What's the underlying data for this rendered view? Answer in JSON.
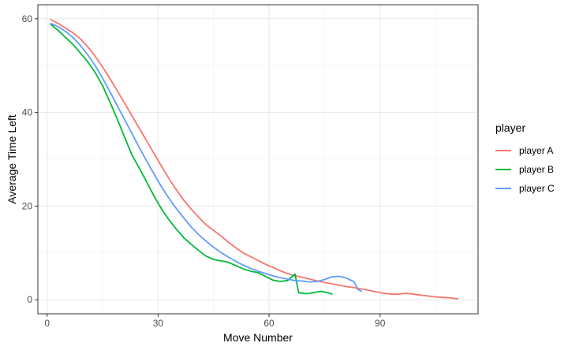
{
  "chart_data": {
    "type": "line",
    "xlabel": "Move Number",
    "ylabel": "Average Time Left",
    "xlim": [
      -2.5,
      116.5
    ],
    "ylim": [
      -3,
      63
    ],
    "x_ticks": [
      0,
      30,
      60,
      90
    ],
    "y_ticks": [
      0,
      20,
      40,
      60
    ],
    "grid": true,
    "legend_position": "right",
    "legend_title": "player",
    "series": [
      {
        "name": "player A",
        "color": "#F8766D",
        "points": [
          [
            1,
            59.8
          ],
          [
            3,
            59.0
          ],
          [
            5,
            58.0
          ],
          [
            7,
            57.0
          ],
          [
            9,
            55.7
          ],
          [
            11,
            54.0
          ],
          [
            13,
            52.0
          ],
          [
            15,
            49.7
          ],
          [
            17,
            47.2
          ],
          [
            19,
            44.6
          ],
          [
            21,
            41.9
          ],
          [
            23,
            39.2
          ],
          [
            25,
            36.5
          ],
          [
            27,
            33.8
          ],
          [
            29,
            31.1
          ],
          [
            31,
            28.4
          ],
          [
            33,
            25.8
          ],
          [
            35,
            23.4
          ],
          [
            37,
            21.2
          ],
          [
            39,
            19.3
          ],
          [
            41,
            17.6
          ],
          [
            43,
            16.0
          ],
          [
            45,
            14.8
          ],
          [
            47,
            13.6
          ],
          [
            49,
            12.3
          ],
          [
            51,
            11.1
          ],
          [
            53,
            10.0
          ],
          [
            55,
            9.2
          ],
          [
            57,
            8.4
          ],
          [
            59,
            7.6
          ],
          [
            61,
            6.9
          ],
          [
            63,
            6.2
          ],
          [
            65,
            5.6
          ],
          [
            67,
            5.1
          ],
          [
            69,
            4.8
          ],
          [
            71,
            4.4
          ],
          [
            73,
            4.0
          ],
          [
            75,
            3.7
          ],
          [
            77,
            3.4
          ],
          [
            79,
            3.1
          ],
          [
            81,
            2.8
          ],
          [
            83,
            2.6
          ],
          [
            85,
            2.3
          ],
          [
            87,
            2.0
          ],
          [
            89,
            1.7
          ],
          [
            91,
            1.4
          ],
          [
            93,
            1.2
          ],
          [
            95,
            1.2
          ],
          [
            97,
            1.4
          ],
          [
            99,
            1.2
          ],
          [
            101,
            1.0
          ],
          [
            103,
            0.8
          ],
          [
            105,
            0.6
          ],
          [
            107,
            0.5
          ],
          [
            109,
            0.4
          ],
          [
            111,
            0.2
          ]
        ]
      },
      {
        "name": "player B",
        "color": "#00BA38",
        "points": [
          [
            1,
            58.8
          ],
          [
            3,
            57.5
          ],
          [
            5,
            56.0
          ],
          [
            7,
            54.5
          ],
          [
            9,
            52.7
          ],
          [
            11,
            50.8
          ],
          [
            13,
            48.5
          ],
          [
            15,
            45.7
          ],
          [
            17,
            42.2
          ],
          [
            19,
            38.5
          ],
          [
            21,
            34.6
          ],
          [
            23,
            30.8
          ],
          [
            25,
            28.0
          ],
          [
            27,
            25.0
          ],
          [
            29,
            22.0
          ],
          [
            31,
            19.3
          ],
          [
            33,
            17.0
          ],
          [
            35,
            15.0
          ],
          [
            37,
            13.2
          ],
          [
            39,
            11.8
          ],
          [
            41,
            10.5
          ],
          [
            43,
            9.3
          ],
          [
            45,
            8.6
          ],
          [
            47,
            8.3
          ],
          [
            49,
            8.0
          ],
          [
            51,
            7.3
          ],
          [
            53,
            6.6
          ],
          [
            55,
            6.1
          ],
          [
            57,
            5.8
          ],
          [
            59,
            5.0
          ],
          [
            61,
            4.2
          ],
          [
            63,
            3.9
          ],
          [
            65,
            4.1
          ],
          [
            67,
            5.5
          ],
          [
            68,
            1.5
          ],
          [
            70,
            1.3
          ],
          [
            72,
            1.5
          ],
          [
            74,
            1.8
          ],
          [
            76,
            1.5
          ],
          [
            77,
            1.2
          ]
        ]
      },
      {
        "name": "player C",
        "color": "#619CFF",
        "points": [
          [
            1,
            59.0
          ],
          [
            3,
            58.3
          ],
          [
            5,
            57.3
          ],
          [
            7,
            56.0
          ],
          [
            9,
            54.3
          ],
          [
            11,
            52.3
          ],
          [
            13,
            50.0
          ],
          [
            15,
            47.3
          ],
          [
            17,
            44.4
          ],
          [
            19,
            41.4
          ],
          [
            21,
            38.4
          ],
          [
            23,
            35.4
          ],
          [
            25,
            32.4
          ],
          [
            27,
            29.5
          ],
          [
            29,
            26.7
          ],
          [
            31,
            24.0
          ],
          [
            33,
            21.6
          ],
          [
            35,
            19.4
          ],
          [
            37,
            17.4
          ],
          [
            39,
            15.5
          ],
          [
            41,
            13.9
          ],
          [
            43,
            12.5
          ],
          [
            45,
            11.2
          ],
          [
            47,
            10.1
          ],
          [
            49,
            9.1
          ],
          [
            51,
            8.2
          ],
          [
            53,
            7.4
          ],
          [
            55,
            6.7
          ],
          [
            57,
            6.1
          ],
          [
            59,
            5.6
          ],
          [
            61,
            5.1
          ],
          [
            63,
            4.7
          ],
          [
            65,
            4.4
          ],
          [
            67,
            4.1
          ],
          [
            69,
            4.0
          ],
          [
            71,
            3.8
          ],
          [
            73,
            3.9
          ],
          [
            75,
            4.3
          ],
          [
            77,
            4.9
          ],
          [
            79,
            5.0
          ],
          [
            81,
            4.6
          ],
          [
            83,
            3.8
          ],
          [
            84,
            2.2
          ],
          [
            85,
            1.8
          ]
        ]
      }
    ]
  }
}
